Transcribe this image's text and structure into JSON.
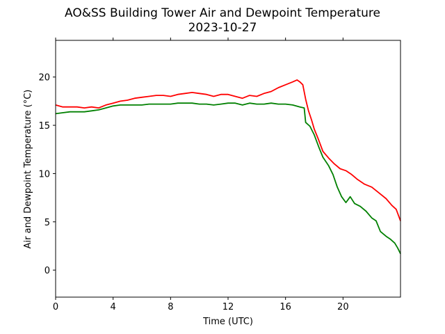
{
  "chart_data": {
    "type": "line",
    "title": "AO&SS Building Tower Air and Dewpoint Temperature",
    "subtitle": "2023-10-27",
    "xlabel": "Time (UTC)",
    "ylabel": "Air and Dewpoint Temperature (°C)",
    "xlim": [
      0,
      24
    ],
    "ylim": [
      -2.8,
      23.8
    ],
    "xticks": [
      0,
      4,
      8,
      12,
      16,
      20
    ],
    "yticks": [
      0,
      5,
      10,
      15,
      20
    ],
    "grid": false,
    "legend": "none",
    "series": [
      {
        "color": "#ff0000",
        "x": [
          0,
          0.5,
          1,
          1.5,
          2,
          2.5,
          3,
          3.5,
          4,
          4.5,
          5,
          5.5,
          6,
          6.5,
          7,
          7.5,
          8,
          8.5,
          9,
          9.5,
          10,
          10.5,
          11,
          11.5,
          12,
          12.5,
          13,
          13.5,
          14,
          14.5,
          15,
          15.5,
          16,
          16.5,
          16.8,
          17,
          17.2,
          17.4,
          17.6,
          17.8,
          18,
          18.3,
          18.6,
          19,
          19.4,
          19.8,
          20.2,
          20.6,
          21,
          21.5,
          22,
          22.5,
          23,
          23.4,
          23.7,
          24
        ],
        "y": [
          17.1,
          16.9,
          16.9,
          16.9,
          16.8,
          16.9,
          16.8,
          17.1,
          17.3,
          17.5,
          17.6,
          17.8,
          17.9,
          18.0,
          18.1,
          18.1,
          18.0,
          18.2,
          18.3,
          18.4,
          18.3,
          18.2,
          18.0,
          18.2,
          18.2,
          18.0,
          17.8,
          18.1,
          18.0,
          18.3,
          18.5,
          18.9,
          19.2,
          19.5,
          19.7,
          19.5,
          19.2,
          17.7,
          16.5,
          15.6,
          14.6,
          13.5,
          12.3,
          11.6,
          11.0,
          10.5,
          10.3,
          9.9,
          9.4,
          8.9,
          8.6,
          8.0,
          7.4,
          6.7,
          6.3,
          5.1
        ]
      },
      {
        "color": "#008000",
        "x": [
          0,
          0.5,
          1,
          1.5,
          2,
          2.5,
          3,
          3.5,
          4,
          4.5,
          5,
          5.5,
          6,
          6.5,
          7,
          7.5,
          8,
          8.5,
          9,
          9.5,
          10,
          10.5,
          11,
          11.5,
          12,
          12.5,
          13,
          13.5,
          14,
          14.5,
          15,
          15.5,
          16,
          16.5,
          17,
          17.3,
          17.4,
          17.7,
          18,
          18.3,
          18.6,
          19,
          19.3,
          19.6,
          19.9,
          20.2,
          20.5,
          20.8,
          21.2,
          21.6,
          22,
          22.3,
          22.6,
          23,
          23.3,
          23.6,
          23.8,
          24
        ],
        "y": [
          16.2,
          16.3,
          16.4,
          16.4,
          16.4,
          16.5,
          16.6,
          16.8,
          17.0,
          17.1,
          17.1,
          17.1,
          17.1,
          17.2,
          17.2,
          17.2,
          17.2,
          17.3,
          17.3,
          17.3,
          17.2,
          17.2,
          17.1,
          17.2,
          17.3,
          17.3,
          17.1,
          17.3,
          17.2,
          17.2,
          17.3,
          17.2,
          17.2,
          17.1,
          16.9,
          16.8,
          15.3,
          14.9,
          14.0,
          12.8,
          11.7,
          10.8,
          9.9,
          8.6,
          7.6,
          7.0,
          7.6,
          6.9,
          6.6,
          6.1,
          5.4,
          5.1,
          4.0,
          3.5,
          3.2,
          2.8,
          2.3,
          1.7
        ]
      }
    ]
  }
}
